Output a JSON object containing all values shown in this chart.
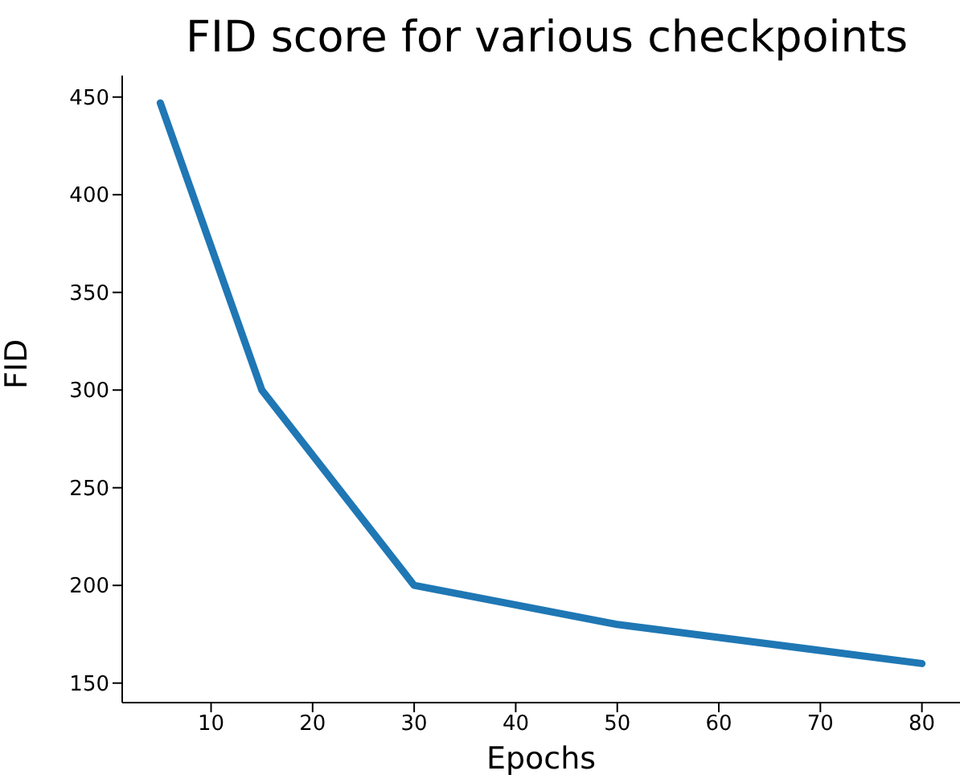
{
  "chart_data": {
    "type": "line",
    "title": "FID score for various checkpoints",
    "xlabel": "Epochs",
    "ylabel": "FID",
    "x": [
      5,
      15,
      30,
      50,
      80
    ],
    "series": [
      {
        "color": "#1f77b4",
        "values": [
          447,
          300,
          200,
          180,
          160
        ]
      }
    ],
    "xlim": [
      1.25,
      83.75
    ],
    "xticks": [
      10,
      20,
      30,
      40,
      50,
      60,
      70,
      80
    ],
    "ylim": [
      140,
      461
    ],
    "yticks": [
      150,
      200,
      250,
      300,
      350,
      400,
      450
    ],
    "grid": false,
    "legend": false,
    "marker": "none",
    "line_style": "solid"
  }
}
